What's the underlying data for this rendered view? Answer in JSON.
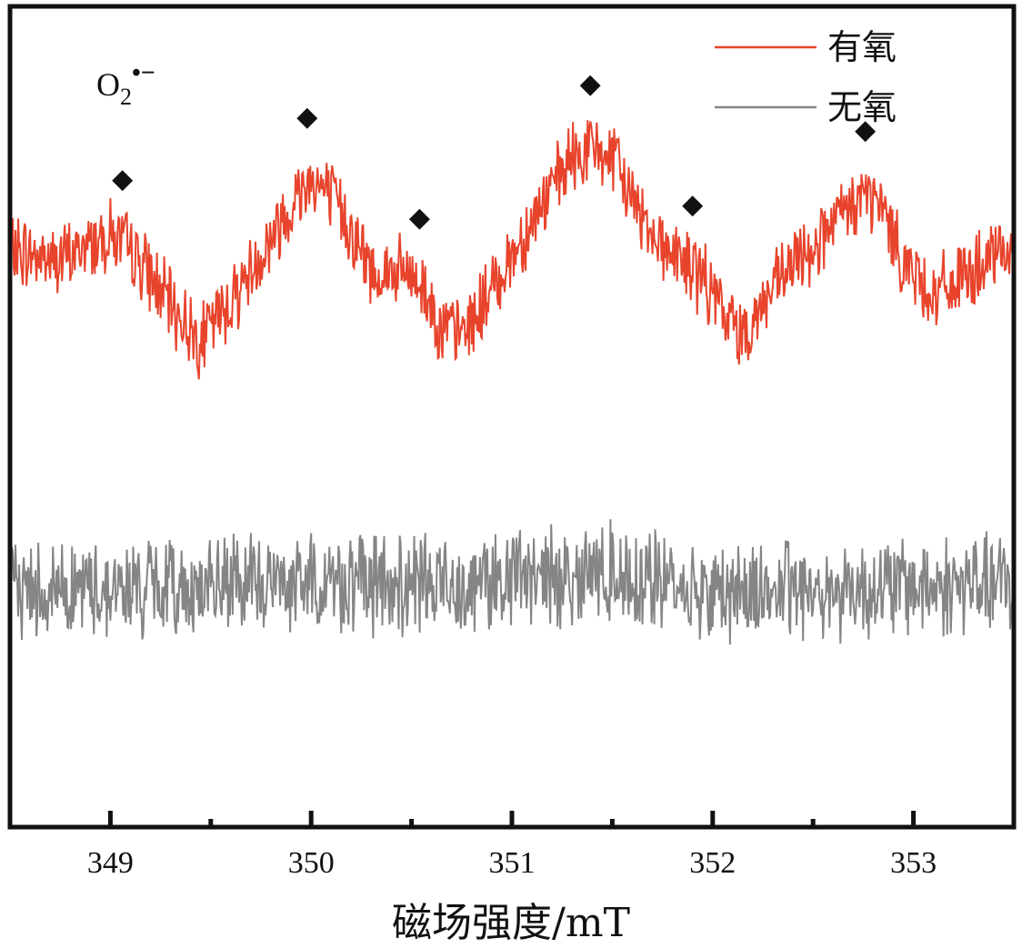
{
  "chart_data": {
    "type": "line",
    "xlabel": "磁场强度/mT",
    "ylabel": "",
    "xlim": [
      348.5,
      353.5
    ],
    "ylim": [
      -1.4,
      1.5
    ],
    "x_major_ticks": [
      349,
      350,
      351,
      352,
      353
    ],
    "x_minor_ticks": [
      349.5,
      350.5,
      351.5,
      352.5
    ],
    "yticks_shown": false,
    "grid": false,
    "legend_position": "top-right",
    "annotation": {
      "base": "O",
      "subscript": "2",
      "superscript": "•−"
    },
    "marker_symbol": "◆",
    "peak_markers_x": [
      349.06,
      349.98,
      350.54,
      351.39,
      351.9,
      352.76
    ],
    "series": [
      {
        "name": "有氧",
        "color": "#e8442c",
        "x": [
          348.5,
          348.75,
          349.0,
          349.15,
          349.3,
          349.45,
          349.6,
          349.75,
          349.9,
          350.0,
          350.15,
          350.3,
          350.45,
          350.55,
          350.65,
          350.75,
          350.85,
          351.0,
          351.15,
          351.3,
          351.4,
          351.5,
          351.6,
          351.75,
          351.85,
          351.95,
          352.05,
          352.15,
          352.3,
          352.45,
          352.6,
          352.75,
          352.85,
          352.95,
          353.1,
          353.25,
          353.4,
          353.5
        ],
        "values": [
          0.64,
          0.6,
          0.7,
          0.6,
          0.44,
          0.32,
          0.46,
          0.62,
          0.8,
          0.9,
          0.78,
          0.56,
          0.56,
          0.52,
          0.36,
          0.34,
          0.44,
          0.62,
          0.8,
          0.96,
          1.0,
          0.96,
          0.82,
          0.66,
          0.6,
          0.54,
          0.42,
          0.34,
          0.5,
          0.62,
          0.72,
          0.84,
          0.78,
          0.6,
          0.48,
          0.54,
          0.6,
          0.66
        ]
      },
      {
        "name": "无氧",
        "color": "#858585",
        "x": [
          348.5,
          349.0,
          349.5,
          350.0,
          350.5,
          351.0,
          351.5,
          352.0,
          352.5,
          353.0,
          353.5
        ],
        "values": [
          -0.55,
          -0.56,
          -0.55,
          -0.53,
          -0.55,
          -0.52,
          -0.5,
          -0.57,
          -0.56,
          -0.55,
          -0.54
        ]
      }
    ]
  }
}
